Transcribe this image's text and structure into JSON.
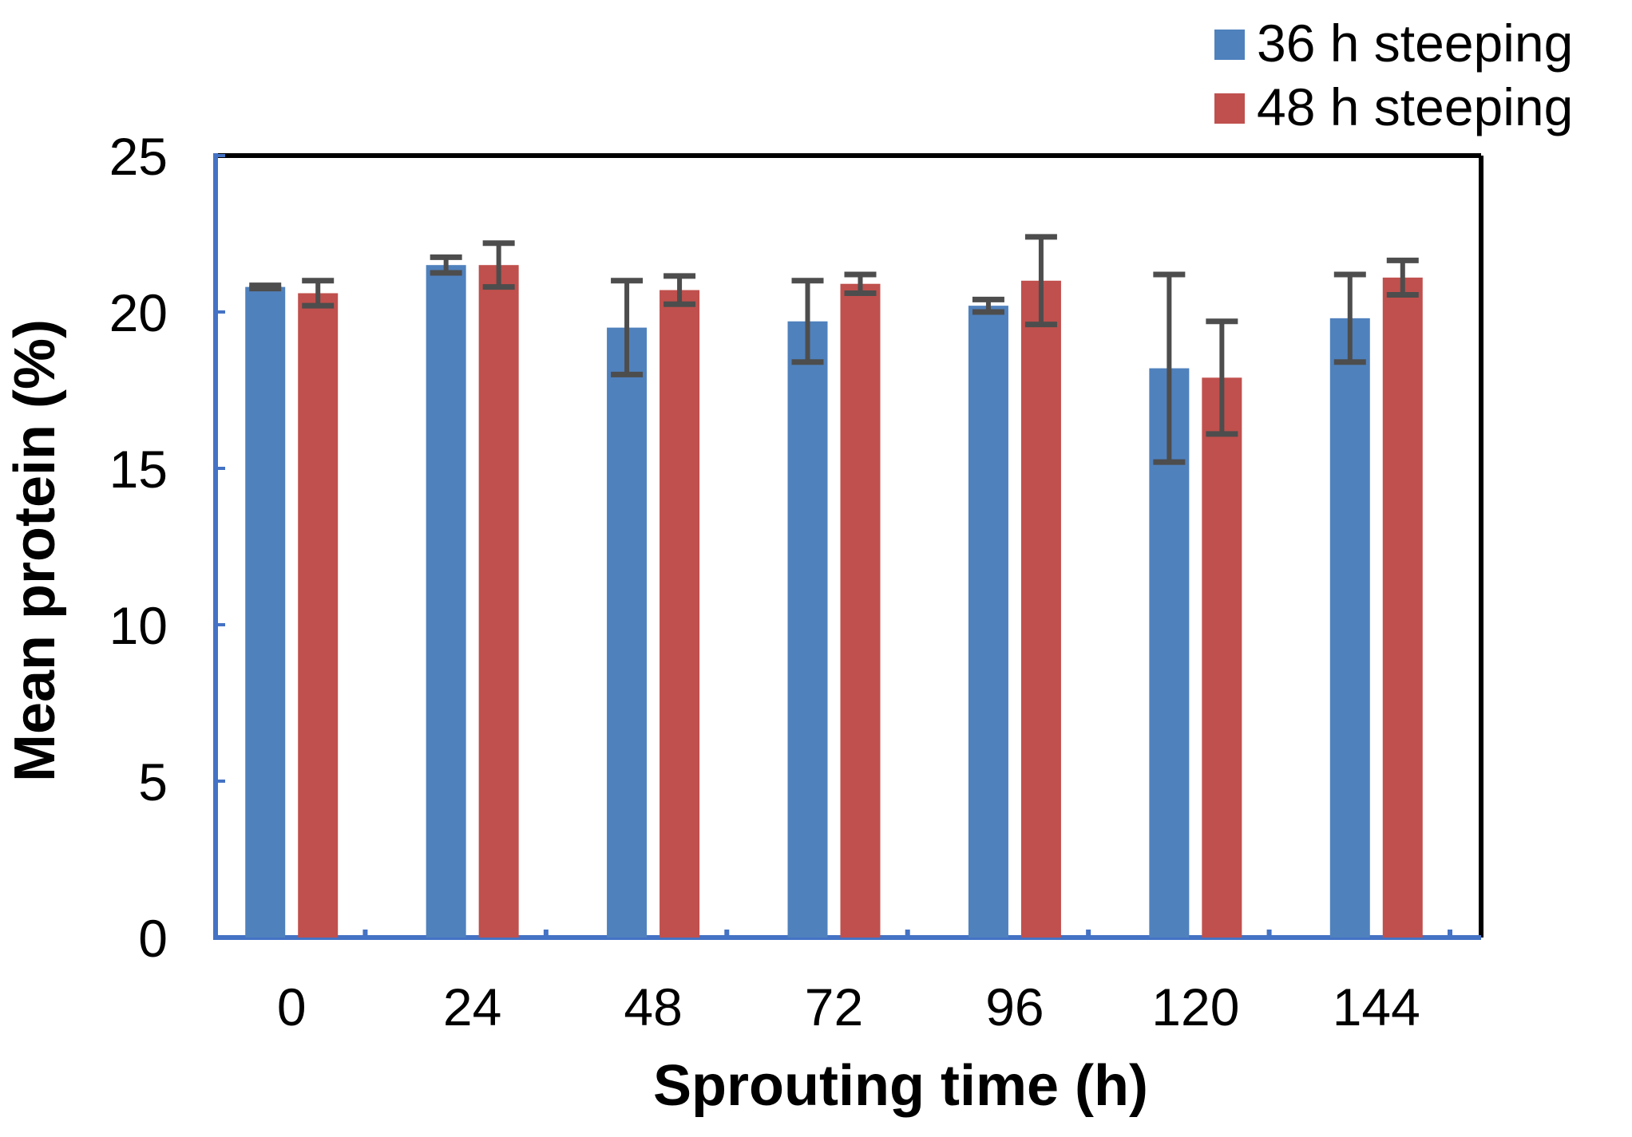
{
  "chart_data": {
    "type": "bar",
    "title": "",
    "xlabel": "Sprouting time (h)",
    "ylabel": "Mean protein (%)",
    "ylim": [
      0,
      25
    ],
    "yticks": [
      0,
      5,
      10,
      15,
      20,
      25
    ],
    "grid": false,
    "legend_position": "top-right",
    "categories": [
      "0",
      "24",
      "48",
      "72",
      "96",
      "120",
      "144"
    ],
    "series": [
      {
        "name": "36 h steeping",
        "color": "#4F81BD",
        "values": [
          20.8,
          21.5,
          19.5,
          19.7,
          20.2,
          18.2,
          19.8
        ],
        "errors": [
          0.05,
          0.25,
          1.5,
          1.3,
          0.2,
          3.0,
          1.4
        ]
      },
      {
        "name": "48 h steeping",
        "color": "#C0504D",
        "values": [
          20.6,
          21.5,
          20.7,
          20.9,
          21.0,
          17.9,
          21.1
        ],
        "errors": [
          0.4,
          0.7,
          0.45,
          0.3,
          1.4,
          1.8,
          0.55
        ]
      }
    ],
    "errorbar_color": "#4D4D4D",
    "axis_color": "#4472C4",
    "frame_color": "#000000"
  }
}
